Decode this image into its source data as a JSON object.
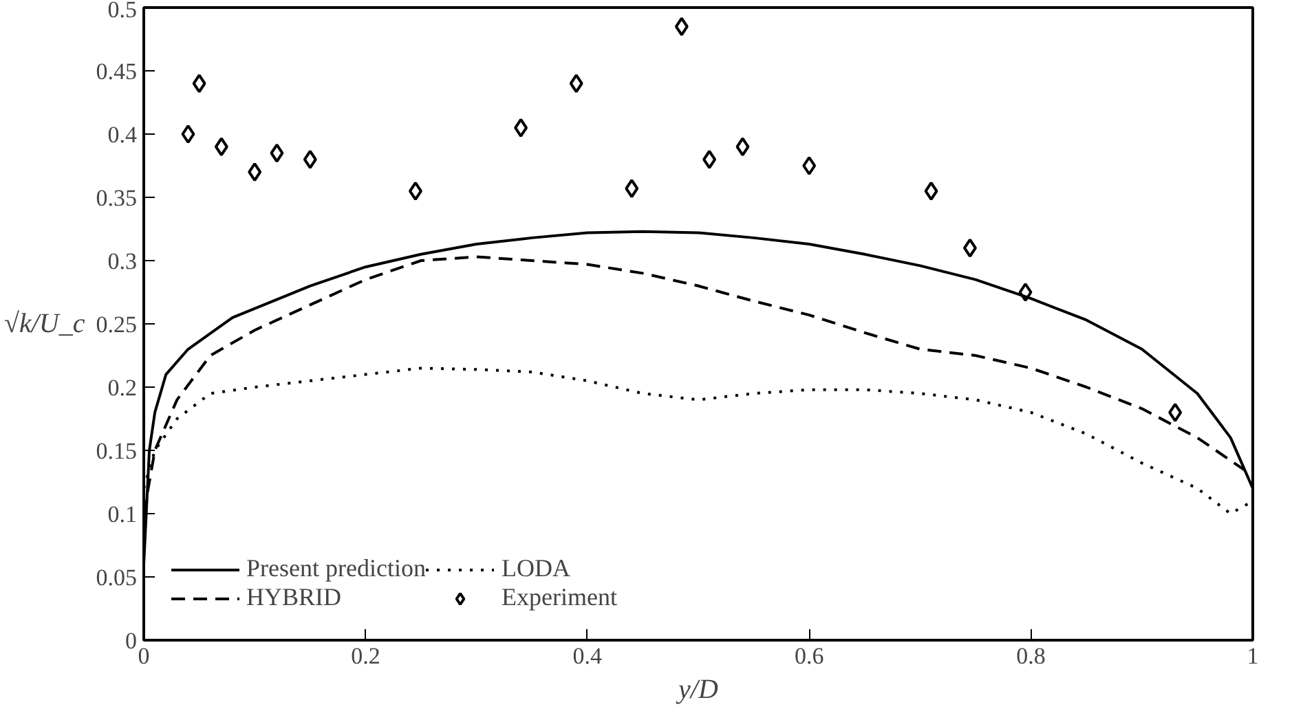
{
  "chart_data": {
    "type": "line",
    "xlabel": "y/D",
    "ylabel": "√k/U_c",
    "xlim": [
      0,
      1
    ],
    "ylim": [
      0,
      0.5
    ],
    "xticks": [
      0,
      0.2,
      0.4,
      0.6,
      0.8,
      1
    ],
    "yticks": [
      0,
      0.05,
      0.1,
      0.15,
      0.2,
      0.25,
      0.3,
      0.35,
      0.4,
      0.45,
      0.5
    ],
    "legend": "bottom left",
    "series": [
      {
        "name": "Present prediction",
        "color": "#000000",
        "line_style": "solid",
        "x": [
          0,
          0.005,
          0.01,
          0.02,
          0.04,
          0.08,
          0.15,
          0.2,
          0.25,
          0.3,
          0.35,
          0.4,
          0.45,
          0.5,
          0.55,
          0.6,
          0.65,
          0.7,
          0.75,
          0.8,
          0.85,
          0.9,
          0.95,
          0.98,
          1.0
        ],
        "values": [
          0.06,
          0.15,
          0.18,
          0.21,
          0.23,
          0.255,
          0.28,
          0.295,
          0.305,
          0.313,
          0.318,
          0.322,
          0.323,
          0.322,
          0.318,
          0.313,
          0.305,
          0.296,
          0.285,
          0.27,
          0.253,
          0.23,
          0.195,
          0.16,
          0.12
        ]
      },
      {
        "name": "HYBRID",
        "color": "#000000",
        "line_style": "dashed",
        "x": [
          0,
          0.01,
          0.03,
          0.06,
          0.1,
          0.15,
          0.2,
          0.25,
          0.3,
          0.35,
          0.4,
          0.45,
          0.5,
          0.55,
          0.6,
          0.65,
          0.7,
          0.75,
          0.8,
          0.85,
          0.9,
          0.95,
          1.0
        ],
        "values": [
          0.1,
          0.15,
          0.19,
          0.225,
          0.245,
          0.265,
          0.285,
          0.3,
          0.303,
          0.3,
          0.297,
          0.29,
          0.28,
          0.268,
          0.257,
          0.243,
          0.23,
          0.225,
          0.215,
          0.2,
          0.183,
          0.16,
          0.13
        ]
      },
      {
        "name": "LODA",
        "color": "#000000",
        "line_style": "dotted",
        "x": [
          0,
          0.01,
          0.03,
          0.06,
          0.1,
          0.15,
          0.2,
          0.25,
          0.3,
          0.35,
          0.4,
          0.45,
          0.5,
          0.55,
          0.6,
          0.65,
          0.7,
          0.75,
          0.8,
          0.85,
          0.9,
          0.95,
          0.98,
          1.0
        ],
        "values": [
          0.12,
          0.15,
          0.175,
          0.195,
          0.2,
          0.205,
          0.21,
          0.215,
          0.214,
          0.212,
          0.205,
          0.195,
          0.19,
          0.195,
          0.198,
          0.198,
          0.195,
          0.19,
          0.18,
          0.163,
          0.14,
          0.12,
          0.1,
          0.11
        ]
      },
      {
        "name": "Experiment",
        "color": "#000000",
        "type": "scatter",
        "marker": "diamond",
        "x": [
          0.04,
          0.05,
          0.07,
          0.1,
          0.12,
          0.15,
          0.245,
          0.34,
          0.39,
          0.44,
          0.485,
          0.51,
          0.54,
          0.6,
          0.71,
          0.745,
          0.795,
          0.93
        ],
        "values": [
          0.4,
          0.44,
          0.39,
          0.37,
          0.385,
          0.38,
          0.355,
          0.405,
          0.44,
          0.357,
          0.485,
          0.38,
          0.39,
          0.375,
          0.355,
          0.31,
          0.275,
          0.18
        ]
      }
    ]
  }
}
